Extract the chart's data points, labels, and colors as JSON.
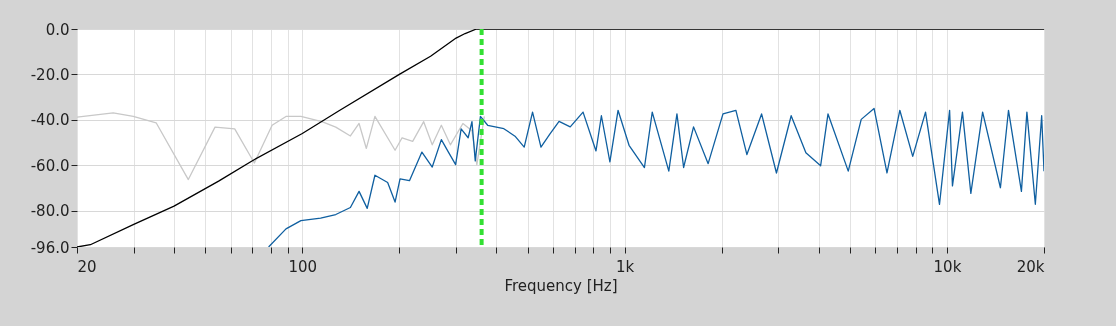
{
  "chart_data": {
    "type": "line",
    "xlabel": "Frequency [Hz]",
    "log": "x",
    "grid": true,
    "xlim": [
      20,
      20000
    ],
    "ylim": [
      -96,
      0
    ],
    "xticks": [
      20,
      {
        "value": 30,
        "label": null
      },
      {
        "value": 40,
        "label": null
      },
      {
        "value": 50,
        "label": null
      },
      {
        "value": 60,
        "label": null
      },
      {
        "value": 70,
        "label": null
      },
      {
        "value": 80,
        "label": null
      },
      {
        "value": 90,
        "label": null
      },
      100,
      {
        "value": 200,
        "label": null
      },
      {
        "value": 300,
        "label": null
      },
      {
        "value": 400,
        "label": null
      },
      {
        "value": 500,
        "label": null
      },
      {
        "value": 600,
        "label": null
      },
      {
        "value": 700,
        "label": null
      },
      {
        "value": 800,
        "label": null
      },
      {
        "value": 900,
        "label": null
      },
      {
        "value": 1000,
        "label": "1k"
      },
      {
        "value": 2000,
        "label": null
      },
      {
        "value": 3000,
        "label": null
      },
      {
        "value": 4000,
        "label": null
      },
      {
        "value": 5000,
        "label": null
      },
      {
        "value": 6000,
        "label": null
      },
      {
        "value": 7000,
        "label": null
      },
      {
        "value": 8000,
        "label": null
      },
      {
        "value": 9000,
        "label": null
      },
      {
        "value": 10000,
        "label": "10k"
      },
      {
        "value": 20000,
        "label": "20k"
      }
    ],
    "yticks": [
      {
        "value": 0,
        "label": "0.0"
      },
      {
        "value": -20,
        "label": "-20.0"
      },
      {
        "value": -40,
        "label": "-40.0"
      },
      {
        "value": -60,
        "label": "-60.0"
      },
      {
        "value": -80,
        "label": "-80.0"
      },
      {
        "value": -96,
        "label": "-96.0"
      }
    ],
    "ref_lines": [
      {
        "axis": "x",
        "value": 360,
        "color": "#33e033",
        "line_style": "dashed"
      }
    ],
    "series": [
      {
        "color": "#c8c8c8",
        "x": [
          20,
          25.9,
          29.9,
          35.2,
          44.3,
          53.6,
          61.7,
          71,
          80.6,
          89,
          99,
          115,
          127,
          141,
          150,
          158,
          168,
          194,
          204,
          220,
          238,
          253,
          270,
          288,
          315,
          336,
          348,
          367
        ],
        "values": [
          -38.8,
          -36.9,
          -38.5,
          -41.3,
          -66.3,
          -43.2,
          -44,
          -59,
          -42.4,
          -38.5,
          -38.5,
          -40.8,
          -43.2,
          -47.1,
          -41.6,
          -52.6,
          -38.5,
          -53.4,
          -47.9,
          -49.5,
          -40.8,
          -51,
          -42.4,
          -51,
          -41.6,
          -44.8,
          -59.7,
          -38.5
        ]
      },
      {
        "color": "#000000",
        "x": [
          20,
          22,
          30,
          40,
          55,
          70,
          100,
          130,
          200,
          250,
          300,
          320,
          347,
          20000
        ],
        "values": [
          -96,
          -95,
          -86,
          -78,
          -67,
          -58,
          -46,
          -36,
          -20,
          -12,
          -4,
          -2,
          0,
          0
        ]
      },
      {
        "color": "#0f5fa0",
        "x": [
          78.6,
          89,
          99,
          114,
          127,
          141,
          150,
          159,
          168,
          184,
          194,
          201,
          215,
          235,
          253,
          270,
          284,
          299,
          311,
          327,
          336,
          344,
          357,
          376,
          422,
          457,
          488,
          518,
          550,
          586,
          626,
          678,
          743,
          815,
          847,
          900,
          954,
          1032,
          1152,
          1218,
          1371,
          1453,
          1524,
          1636,
          1816,
          2019,
          2214,
          2395,
          2660,
          2958,
          3286,
          3650,
          4056,
          4275,
          4940,
          5420,
          5940,
          6515,
          7140,
          7830,
          8580,
          9480,
          10190,
          10400,
          11170,
          11860,
          12900,
          14650,
          15520,
          17020,
          17700,
          18800,
          19670,
          20000
        ],
        "values": [
          -96,
          -88,
          -84.4,
          -83.3,
          -81.7,
          -78.6,
          -71.5,
          -79,
          -64.4,
          -67.6,
          -76.2,
          -66,
          -66.8,
          -54.2,
          -60.8,
          -48.7,
          -54.2,
          -59.7,
          -44,
          -47.9,
          -40.8,
          -58.1,
          -38.5,
          -42.4,
          -43.9,
          -47.2,
          -52,
          -36.6,
          -52,
          -46.3,
          -40.7,
          -43.1,
          -36.6,
          -53.7,
          -38.2,
          -58.5,
          -35.8,
          -51.2,
          -61,
          -36.6,
          -62.6,
          -37.4,
          -61,
          -43.1,
          -59.3,
          -37.4,
          -35.8,
          -55.3,
          -37.4,
          -63.4,
          -38.2,
          -54.5,
          -60.2,
          -37.4,
          -62.6,
          -39.8,
          -35,
          -63.4,
          -35.8,
          -56.1,
          -36.6,
          -77.2,
          -35.8,
          -69.1,
          -36.6,
          -72.4,
          -36.6,
          -69.9,
          -35.8,
          -71.5,
          -36.6,
          -77.2,
          -38.2,
          -62.6
        ]
      }
    ]
  }
}
